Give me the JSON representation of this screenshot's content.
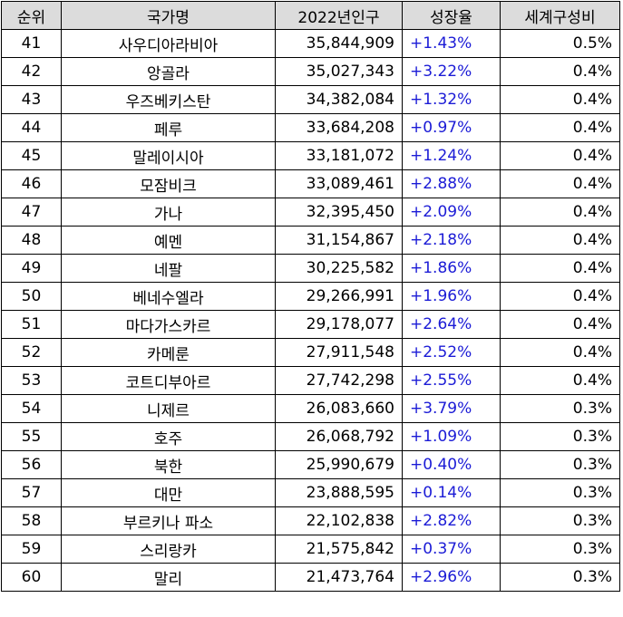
{
  "table": {
    "headers": [
      "순위",
      "국가명",
      "2022년인구",
      "성장율",
      "세계구성비"
    ],
    "growth_color": "#1b1bd6",
    "header_bg": "#dcdcdc",
    "rows": [
      {
        "rank": "41",
        "country": "사우디아라비아",
        "population": "35,844,909",
        "growth": "+1.43%",
        "share": "0.5%"
      },
      {
        "rank": "42",
        "country": "앙골라",
        "population": "35,027,343",
        "growth": "+3.22%",
        "share": "0.4%"
      },
      {
        "rank": "43",
        "country": "우즈베키스탄",
        "population": "34,382,084",
        "growth": "+1.32%",
        "share": "0.4%"
      },
      {
        "rank": "44",
        "country": "페루",
        "population": "33,684,208",
        "growth": "+0.97%",
        "share": "0.4%"
      },
      {
        "rank": "45",
        "country": "말레이시아",
        "population": "33,181,072",
        "growth": "+1.24%",
        "share": "0.4%"
      },
      {
        "rank": "46",
        "country": "모잠비크",
        "population": "33,089,461",
        "growth": "+2.88%",
        "share": "0.4%"
      },
      {
        "rank": "47",
        "country": "가나",
        "population": "32,395,450",
        "growth": "+2.09%",
        "share": "0.4%"
      },
      {
        "rank": "48",
        "country": "예멘",
        "population": "31,154,867",
        "growth": "+2.18%",
        "share": "0.4%"
      },
      {
        "rank": "49",
        "country": "네팔",
        "population": "30,225,582",
        "growth": "+1.86%",
        "share": "0.4%"
      },
      {
        "rank": "50",
        "country": "베네수엘라",
        "population": "29,266,991",
        "growth": "+1.96%",
        "share": "0.4%"
      },
      {
        "rank": "51",
        "country": "마다가스카르",
        "population": "29,178,077",
        "growth": "+2.64%",
        "share": "0.4%"
      },
      {
        "rank": "52",
        "country": "카메룬",
        "population": "27,911,548",
        "growth": "+2.52%",
        "share": "0.4%"
      },
      {
        "rank": "53",
        "country": "코트디부아르",
        "population": "27,742,298",
        "growth": "+2.55%",
        "share": "0.4%"
      },
      {
        "rank": "54",
        "country": "니제르",
        "population": "26,083,660",
        "growth": "+3.79%",
        "share": "0.3%"
      },
      {
        "rank": "55",
        "country": "호주",
        "population": "26,068,792",
        "growth": "+1.09%",
        "share": "0.3%"
      },
      {
        "rank": "56",
        "country": "북한",
        "population": "25,990,679",
        "growth": "+0.40%",
        "share": "0.3%"
      },
      {
        "rank": "57",
        "country": "대만",
        "population": "23,888,595",
        "growth": "+0.14%",
        "share": "0.3%"
      },
      {
        "rank": "58",
        "country": "부르키나 파소",
        "population": "22,102,838",
        "growth": "+2.82%",
        "share": "0.3%"
      },
      {
        "rank": "59",
        "country": "스리랑카",
        "population": "21,575,842",
        "growth": "+0.37%",
        "share": "0.3%"
      },
      {
        "rank": "60",
        "country": "말리",
        "population": "21,473,764",
        "growth": "+2.96%",
        "share": "0.3%"
      }
    ]
  }
}
